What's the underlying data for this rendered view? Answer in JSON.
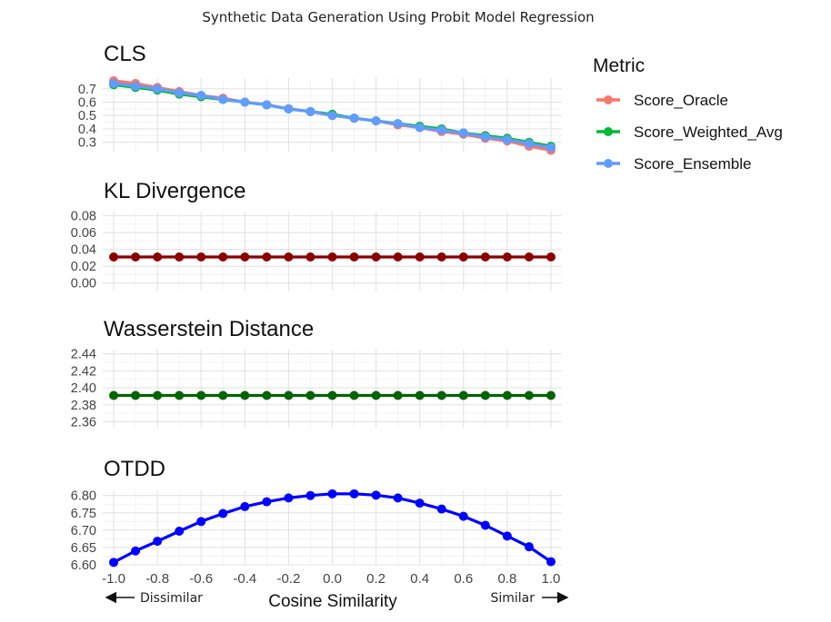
{
  "figure": {
    "title": "Synthetic Data Generation Using Probit Model Regression",
    "xlabel": "Cosine Similarity",
    "left_annotation": "Dissimilar",
    "right_annotation": "Similar",
    "x_ticks": [
      "-1.0",
      "-0.8",
      "-0.6",
      "-0.4",
      "-0.2",
      "0.0",
      "0.2",
      "0.4",
      "0.6",
      "0.8",
      "1.0"
    ]
  },
  "legend": {
    "title": "Metric",
    "items": [
      {
        "label": "Score_Oracle",
        "color": "#F8766D"
      },
      {
        "label": "Score_Weighted_Avg",
        "color": "#00BA38"
      },
      {
        "label": "Score_Ensemble",
        "color": "#619CFF"
      }
    ]
  },
  "chart_data": [
    {
      "type": "line",
      "title": "CLS",
      "xlabel": "Cosine Similarity",
      "ylabel": "",
      "xlim": [
        -1.0,
        1.0
      ],
      "ylim": [
        0.23,
        0.78
      ],
      "yticks": [
        "0.7",
        "0.6",
        "0.5",
        "0.4",
        "0.3"
      ],
      "ytick_values": [
        0.7,
        0.6,
        0.5,
        0.4,
        0.3
      ],
      "x": [
        -1.0,
        -0.9,
        -0.8,
        -0.7,
        -0.6,
        -0.5,
        -0.4,
        -0.3,
        -0.2,
        -0.1,
        0.0,
        0.1,
        0.2,
        0.3,
        0.4,
        0.5,
        0.6,
        0.7,
        0.8,
        0.9,
        1.0
      ],
      "series": [
        {
          "name": "Score_Oracle",
          "color": "#F8766D",
          "values": [
            0.76,
            0.74,
            0.71,
            0.68,
            0.65,
            0.63,
            0.6,
            0.58,
            0.55,
            0.53,
            0.5,
            0.48,
            0.46,
            0.43,
            0.41,
            0.38,
            0.36,
            0.33,
            0.31,
            0.27,
            0.24
          ]
        },
        {
          "name": "Score_Weighted_Avg",
          "color": "#00BA38",
          "values": [
            0.73,
            0.71,
            0.69,
            0.66,
            0.64,
            0.62,
            0.6,
            0.58,
            0.55,
            0.53,
            0.51,
            0.48,
            0.46,
            0.44,
            0.42,
            0.4,
            0.37,
            0.35,
            0.33,
            0.3,
            0.27
          ]
        },
        {
          "name": "Score_Ensemble",
          "color": "#619CFF",
          "values": [
            0.74,
            0.72,
            0.7,
            0.67,
            0.65,
            0.62,
            0.6,
            0.58,
            0.55,
            0.53,
            0.5,
            0.48,
            0.46,
            0.44,
            0.41,
            0.39,
            0.37,
            0.34,
            0.32,
            0.29,
            0.26
          ]
        }
      ]
    },
    {
      "type": "line",
      "title": "KL Divergence",
      "xlabel": "Cosine Similarity",
      "ylabel": "",
      "xlim": [
        -1.0,
        1.0
      ],
      "ylim": [
        -0.009,
        0.085
      ],
      "yticks": [
        "0.08",
        "0.06",
        "0.04",
        "0.02",
        "0.00"
      ],
      "ytick_values": [
        0.08,
        0.06,
        0.04,
        0.02,
        0.0
      ],
      "x": [
        -1.0,
        -0.9,
        -0.8,
        -0.7,
        -0.6,
        -0.5,
        -0.4,
        -0.3,
        -0.2,
        -0.1,
        0.0,
        0.1,
        0.2,
        0.3,
        0.4,
        0.5,
        0.6,
        0.7,
        0.8,
        0.9,
        1.0
      ],
      "series": [
        {
          "name": "KL Divergence",
          "color": "#8B0000",
          "values": [
            0.031,
            0.031,
            0.031,
            0.031,
            0.031,
            0.031,
            0.031,
            0.031,
            0.031,
            0.031,
            0.031,
            0.031,
            0.031,
            0.031,
            0.031,
            0.031,
            0.031,
            0.031,
            0.031,
            0.031,
            0.031
          ]
        }
      ]
    },
    {
      "type": "line",
      "title": "Wasserstein Distance",
      "xlabel": "Cosine Similarity",
      "ylabel": "",
      "xlim": [
        -1.0,
        1.0
      ],
      "ylim": [
        2.353,
        2.445
      ],
      "yticks": [
        "2.44",
        "2.42",
        "2.40",
        "2.38",
        "2.36"
      ],
      "ytick_values": [
        2.44,
        2.42,
        2.4,
        2.38,
        2.36
      ],
      "x": [
        -1.0,
        -0.9,
        -0.8,
        -0.7,
        -0.6,
        -0.5,
        -0.4,
        -0.3,
        -0.2,
        -0.1,
        0.0,
        0.1,
        0.2,
        0.3,
        0.4,
        0.5,
        0.6,
        0.7,
        0.8,
        0.9,
        1.0
      ],
      "series": [
        {
          "name": "Wasserstein Distance",
          "color": "#006400",
          "values": [
            2.391,
            2.391,
            2.391,
            2.391,
            2.391,
            2.391,
            2.391,
            2.391,
            2.391,
            2.391,
            2.391,
            2.391,
            2.391,
            2.391,
            2.391,
            2.391,
            2.391,
            2.391,
            2.391,
            2.391,
            2.391
          ]
        }
      ]
    },
    {
      "type": "line",
      "title": "OTDD",
      "xlabel": "Cosine Similarity",
      "ylabel": "",
      "xlim": [
        -1.0,
        1.0
      ],
      "ylim": [
        6.6,
        6.815
      ],
      "yticks": [
        "6.80",
        "6.75",
        "6.70",
        "6.65",
        "6.60"
      ],
      "ytick_values": [
        6.8,
        6.75,
        6.7,
        6.65,
        6.6
      ],
      "x": [
        -1.0,
        -0.9,
        -0.8,
        -0.7,
        -0.6,
        -0.5,
        -0.4,
        -0.3,
        -0.2,
        -0.1,
        0.0,
        0.1,
        0.2,
        0.3,
        0.4,
        0.5,
        0.6,
        0.7,
        0.8,
        0.9,
        1.0
      ],
      "series": [
        {
          "name": "OTDD",
          "color": "#0000FF",
          "values": [
            6.607,
            6.64,
            6.668,
            6.697,
            6.725,
            6.748,
            6.768,
            6.782,
            6.793,
            6.8,
            6.805,
            6.805,
            6.801,
            6.793,
            6.778,
            6.761,
            6.74,
            6.714,
            6.683,
            6.652,
            6.609
          ]
        }
      ]
    }
  ]
}
